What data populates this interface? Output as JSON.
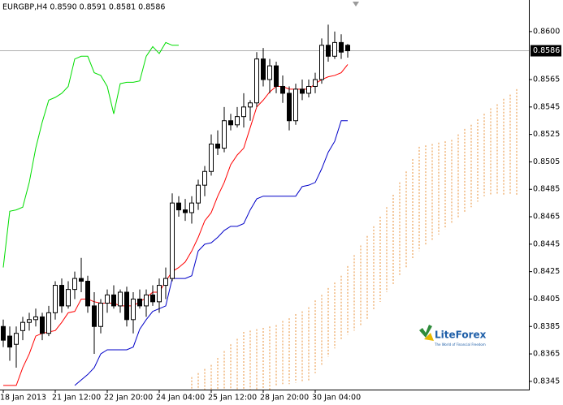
{
  "chart_data": {
    "type": "candlestick",
    "title": "EURGBP,H4  0.8590 0.8591 0.8581 0.8586",
    "logo": "LiteForex",
    "logo_tagline": "The World of Financial Freedom",
    "categories": [
      "18 Jan 2013",
      null,
      null,
      null,
      null,
      null,
      null,
      null,
      "21 Jan 12:00",
      null,
      null,
      null,
      null,
      null,
      null,
      null,
      "22 Jan 20:00",
      null,
      null,
      null,
      null,
      null,
      null,
      null,
      "24 Jan 04:00",
      null,
      null,
      null,
      null,
      null,
      null,
      null,
      "25 Jan 12:00",
      null,
      null,
      null,
      null,
      null,
      null,
      null,
      "28 Jan 20:00",
      null,
      null,
      null,
      null,
      null,
      null,
      null,
      "30 Jan 04:00",
      null,
      null,
      null,
      null,
      null,
      null,
      null,
      null,
      null,
      null,
      null,
      null,
      null,
      null,
      null,
      null,
      null,
      null,
      null,
      null,
      null,
      null,
      null,
      null,
      null,
      null,
      null,
      null,
      null,
      null,
      null
    ],
    "open": [
      0.8385,
      0.8378,
      0.8372,
      0.8382,
      0.8388,
      0.839,
      0.8392,
      0.838,
      0.8395,
      0.8415,
      0.84,
      0.8412,
      0.842,
      0.8418,
      0.84,
      0.8385,
      0.8402,
      0.8408,
      0.84,
      0.841,
      0.839,
      0.8405,
      0.84,
      0.8408,
      0.8403,
      0.8415,
      0.842,
      0.8475,
      0.847,
      0.8468,
      0.8475,
      0.8488,
      0.8498,
      0.8518,
      0.8515,
      0.8535,
      0.8532,
      0.8538,
      0.8545,
      0.8548,
      0.858,
      0.8565,
      0.8575,
      0.856,
      0.8555,
      0.8535,
      0.8558,
      0.8555,
      0.856,
      0.8565,
      0.859,
      0.8582,
      0.8592,
      0.859,
      null,
      null,
      null,
      null,
      null,
      null,
      null,
      null,
      null,
      null,
      null,
      null,
      null,
      null,
      null,
      null,
      null,
      null,
      null,
      null,
      null,
      null,
      null,
      null,
      null,
      null
    ],
    "high": [
      0.839,
      0.8385,
      0.8385,
      0.8392,
      0.8395,
      0.8398,
      0.8395,
      0.84,
      0.8418,
      0.842,
      0.8418,
      0.8425,
      0.8435,
      0.8422,
      0.841,
      0.8405,
      0.8412,
      0.8415,
      0.8412,
      0.8414,
      0.841,
      0.8412,
      0.8412,
      0.8415,
      0.842,
      0.8428,
      0.8482,
      0.848,
      0.8478,
      0.848,
      0.8492,
      0.8502,
      0.8525,
      0.8528,
      0.8545,
      0.854,
      0.8545,
      0.8555,
      0.855,
      0.8585,
      0.8588,
      0.858,
      0.8578,
      0.8568,
      0.856,
      0.8562,
      0.8565,
      0.8565,
      0.857,
      0.8595,
      0.8605,
      0.86,
      0.8598,
      0.8591,
      null,
      null,
      null,
      null,
      null,
      null,
      null,
      null,
      null,
      null,
      null,
      null,
      null,
      null,
      null,
      null,
      null,
      null,
      null,
      null,
      null,
      null,
      null,
      null,
      null,
      null
    ],
    "low": [
      0.837,
      0.836,
      0.8355,
      0.8375,
      0.8382,
      0.8385,
      0.8375,
      0.8378,
      0.839,
      0.8395,
      0.8398,
      0.8405,
      0.841,
      0.8395,
      0.8365,
      0.838,
      0.8395,
      0.8398,
      0.8395,
      0.8385,
      0.838,
      0.8398,
      0.8392,
      0.84,
      0.8395,
      0.8405,
      0.8418,
      0.8465,
      0.8462,
      0.846,
      0.847,
      0.848,
      0.8495,
      0.851,
      0.8512,
      0.8528,
      0.853,
      0.853,
      0.8535,
      0.8545,
      0.856,
      0.8555,
      0.8555,
      0.8548,
      0.8528,
      0.8532,
      0.855,
      0.8552,
      0.8555,
      0.8562,
      0.8578,
      0.858,
      0.858,
      0.8581,
      null,
      null,
      null,
      null,
      null,
      null,
      null,
      null,
      null,
      null,
      null,
      null,
      null,
      null,
      null,
      null,
      null,
      null,
      null,
      null,
      null,
      null,
      null,
      null,
      null,
      null
    ],
    "close": [
      0.8375,
      0.837,
      0.838,
      0.8388,
      0.839,
      0.8392,
      0.838,
      0.8395,
      0.8415,
      0.84,
      0.8412,
      0.842,
      0.8418,
      0.84,
      0.8385,
      0.8402,
      0.8408,
      0.84,
      0.841,
      0.839,
      0.8405,
      0.84,
      0.8408,
      0.8403,
      0.8415,
      0.842,
      0.8475,
      0.847,
      0.8468,
      0.8475,
      0.8488,
      0.8498,
      0.8518,
      0.8515,
      0.8535,
      0.8532,
      0.8538,
      0.8545,
      0.8548,
      0.858,
      0.8565,
      0.8575,
      0.856,
      0.8555,
      0.8535,
      0.8558,
      0.8555,
      0.856,
      0.8565,
      0.859,
      0.8582,
      0.8592,
      0.8585,
      0.8586,
      null,
      null,
      null,
      null,
      null,
      null,
      null,
      null,
      null,
      null,
      null,
      null,
      null,
      null,
      null,
      null,
      null,
      null,
      null,
      null,
      null,
      null,
      null,
      null,
      null,
      null
    ],
    "lines": [
      {
        "color": "#ff0000",
        "values": [
          0.8342,
          0.8342,
          0.8342,
          0.8355,
          0.8365,
          0.8378,
          0.838,
          0.8381,
          0.8382,
          0.8388,
          0.8395,
          0.8396,
          0.8405,
          0.8405,
          0.8403,
          0.8402,
          0.8402,
          0.8402,
          0.84,
          0.84,
          0.84,
          0.8403,
          0.8406,
          0.841,
          0.841,
          0.8418,
          0.8425,
          0.8428,
          0.8432,
          0.844,
          0.845,
          0.8462,
          0.8468,
          0.848,
          0.849,
          0.8503,
          0.851,
          0.8515,
          0.853,
          0.8545,
          0.855,
          0.8556,
          0.856,
          0.856,
          0.8558,
          0.8558,
          0.8558,
          0.8558,
          0.8562,
          0.8565,
          0.8567,
          0.8568,
          0.857,
          0.8576,
          null,
          null,
          null,
          null,
          null,
          null,
          null,
          null,
          null,
          null,
          null,
          null,
          null,
          null,
          null,
          null,
          null,
          null,
          null,
          null,
          null,
          null,
          null,
          null,
          null,
          null
        ]
      },
      {
        "color": "#0000c8",
        "values": [
          null,
          null,
          null,
          null,
          null,
          null,
          null,
          null,
          null,
          null,
          null,
          0.8342,
          0.8346,
          0.835,
          0.8355,
          0.8365,
          0.8368,
          0.8368,
          0.8368,
          0.8368,
          0.837,
          0.8383,
          0.839,
          0.8396,
          0.8398,
          0.84,
          0.842,
          0.842,
          0.842,
          0.8422,
          0.844,
          0.8445,
          0.8446,
          0.845,
          0.8455,
          0.8458,
          0.8458,
          0.846,
          0.847,
          0.8478,
          0.848,
          0.848,
          0.848,
          0.848,
          0.848,
          0.848,
          0.8487,
          0.8488,
          0.849,
          0.85,
          0.8512,
          0.852,
          0.8535,
          0.8535,
          null,
          null,
          null,
          null,
          null,
          null,
          null,
          null,
          null,
          null,
          null,
          null,
          null,
          null,
          null,
          null,
          null,
          null,
          null,
          null,
          null,
          null,
          null,
          null,
          null,
          null
        ]
      },
      {
        "color": "#00dd00",
        "values": [
          0.8428,
          0.8469,
          0.847,
          0.8472,
          0.849,
          0.8515,
          0.8534,
          0.855,
          0.8552,
          0.8555,
          0.856,
          0.858,
          0.8582,
          0.8582,
          0.857,
          0.8568,
          0.856,
          0.854,
          0.8562,
          0.8563,
          0.8563,
          0.8564,
          0.8582,
          0.8589,
          0.8584,
          0.8592,
          0.859,
          0.859,
          null,
          null,
          null,
          null,
          null,
          null,
          null,
          null,
          null,
          null,
          null,
          null,
          null,
          null,
          null,
          null,
          null,
          null,
          null,
          null,
          null,
          null,
          null,
          null,
          null,
          null,
          null,
          null,
          null,
          null,
          null,
          null,
          null,
          null,
          null,
          null,
          null,
          null,
          null,
          null,
          null,
          null,
          null,
          null,
          null,
          null,
          null,
          null,
          null,
          null,
          null,
          null
        ]
      }
    ],
    "cloud": {
      "color": "#e8913a",
      "span_a": [
        null,
        null,
        null,
        null,
        null,
        null,
        null,
        null,
        null,
        null,
        null,
        null,
        null,
        null,
        null,
        null,
        null,
        null,
        null,
        null,
        null,
        null,
        null,
        null,
        null,
        null,
        null,
        null,
        null,
        0.8348,
        0.8351,
        0.8354,
        0.8357,
        0.8362,
        0.8367,
        0.8372,
        0.8376,
        0.8381,
        0.8382,
        0.8383,
        0.8384,
        0.8385,
        0.8386,
        0.8389,
        0.8391,
        0.8394,
        0.8396,
        0.8399,
        0.8404,
        0.8408,
        0.8413,
        0.8417,
        0.8422,
        0.8429,
        0.8437,
        0.8444,
        0.8451,
        0.8458,
        0.8465,
        0.8472,
        0.8481,
        0.849,
        0.8498,
        0.8507,
        0.8516,
        0.8517,
        0.8518,
        0.8519,
        0.852,
        0.8521,
        0.8525,
        0.8529,
        0.8532,
        0.8536,
        0.854,
        0.8544,
        0.8547,
        0.8551,
        0.8554,
        0.8558
      ],
      "span_b": [
        null,
        null,
        null,
        null,
        null,
        null,
        null,
        null,
        null,
        null,
        null,
        null,
        null,
        null,
        null,
        null,
        null,
        null,
        null,
        null,
        null,
        null,
        null,
        null,
        null,
        null,
        null,
        null,
        null,
        0.8339,
        0.8339,
        0.8339,
        0.8339,
        0.8339,
        0.8339,
        0.8339,
        0.8339,
        0.8339,
        0.8339,
        0.8339,
        0.8339,
        0.8339,
        0.8342,
        0.8343,
        0.8343,
        0.8344,
        0.8344,
        0.8345,
        0.8351,
        0.8357,
        0.8363,
        0.8369,
        0.8375,
        0.8379,
        0.8382,
        0.8386,
        0.839,
        0.8397,
        0.8403,
        0.841,
        0.8416,
        0.8422,
        0.8428,
        0.8434,
        0.844,
        0.8444,
        0.8448,
        0.8452,
        0.8456,
        0.846,
        0.8464,
        0.8468,
        0.8472,
        0.8476,
        0.848,
        0.8481,
        0.8481,
        0.8481,
        0.8481,
        0.8481
      ]
    },
    "current_price": {
      "value": 0.8586,
      "label": "0.8586"
    },
    "ylim": [
      0.8339,
      0.8623
    ],
    "yticks": [
      {
        "value": 0.86,
        "label": "0.8600"
      },
      {
        "value": 0.8565,
        "label": "0.8565"
      },
      {
        "value": 0.8545,
        "label": "0.8545"
      },
      {
        "value": 0.8525,
        "label": "0.8525"
      },
      {
        "value": 0.8505,
        "label": "0.8505"
      },
      {
        "value": 0.8485,
        "label": "0.8485"
      },
      {
        "value": 0.8465,
        "label": "0.8465"
      },
      {
        "value": 0.8445,
        "label": "0.8445"
      },
      {
        "value": 0.8425,
        "label": "0.8425"
      },
      {
        "value": 0.8405,
        "label": "0.8405"
      },
      {
        "value": 0.8385,
        "label": "0.8385"
      },
      {
        "value": 0.8365,
        "label": "0.8365"
      },
      {
        "value": 0.8345,
        "label": "0.8345"
      }
    ]
  }
}
